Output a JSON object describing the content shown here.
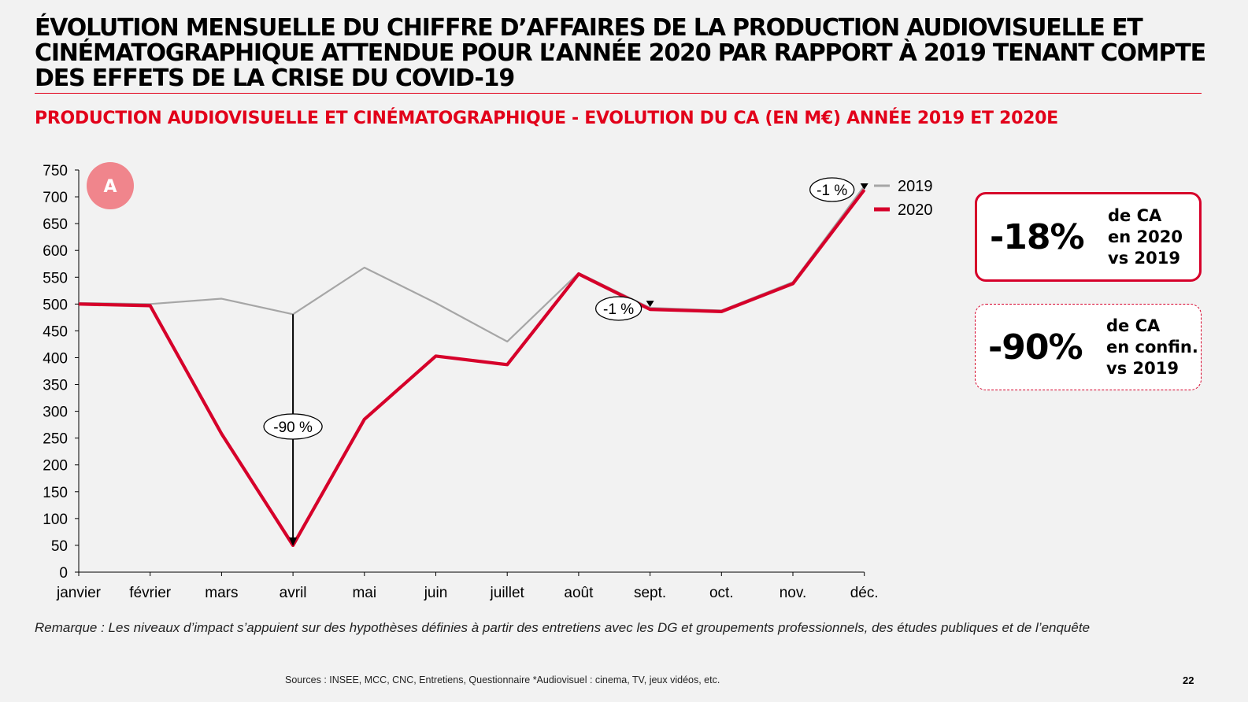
{
  "title": "ÉVOLUTION MENSUELLE DU CHIFFRE D’AFFAIRES DE LA PRODUCTION AUDIOVISUELLE ET CINÉMATOGRAPHIQUE ATTENDUE POUR L’ANNÉE 2020 PAR RAPPORT À 2019 TENANT COMPTE DES EFFETS DE LA CRISE DU COVID-19",
  "subtitle": "PRODUCTION AUDIOVISUELLE ET CINÉMATOGRAPHIQUE - EVOLUTION DU CA (EN M€) ANNÉE 2019 ET 2020E",
  "colors": {
    "accent": "#e2001a",
    "series_2020": "#d6002a",
    "series_2019": "#a6a6a6",
    "badge": "#f0858c"
  },
  "chart_data": {
    "type": "line",
    "badge": "A",
    "categories": [
      "janvier",
      "février",
      "mars",
      "avril",
      "mai",
      "juin",
      "juillet",
      "août",
      "sept.",
      "oct.",
      "nov.",
      "déc."
    ],
    "ylim": [
      0,
      750
    ],
    "yticks": [
      "0",
      "50",
      "100",
      "150",
      "200",
      "250",
      "300",
      "350",
      "400",
      "450",
      "500",
      "550",
      "600",
      "650",
      "700",
      "750"
    ],
    "grid": false,
    "legend_position": "top-right",
    "series": [
      {
        "name": "2019",
        "color": "#a6a6a6",
        "values": [
          502,
          500,
          510,
          481,
          568,
          502,
          430,
          558,
          493,
          488,
          541,
          720
        ]
      },
      {
        "name": "2020",
        "color": "#d6002a",
        "values": [
          500,
          497,
          258,
          50,
          285,
          403,
          387,
          556,
          490,
          486,
          538,
          713
        ]
      }
    ],
    "annotations": [
      {
        "label": "-90 %",
        "category": "avril"
      },
      {
        "label": "-1 %",
        "category": "sept."
      },
      {
        "label": "-1 %",
        "category": "déc."
      }
    ]
  },
  "kpis": [
    {
      "value": "-18%",
      "lines": [
        "de CA",
        "en 2020",
        "vs 2019"
      ]
    },
    {
      "value": "-90%",
      "lines": [
        "de CA",
        "en confin.",
        "vs 2019"
      ]
    }
  ],
  "remark": "Remarque : Les niveaux d’impact s’appuient sur des hypothèses définies à partir des entretiens avec les DG et groupements professionnels, des études publiques et de l’enquête",
  "sources": "Sources : INSEE, MCC, CNC, Entretiens, Questionnaire *Audiovisuel : cinema, TV, jeux vidéos, etc.",
  "page_number": "22"
}
